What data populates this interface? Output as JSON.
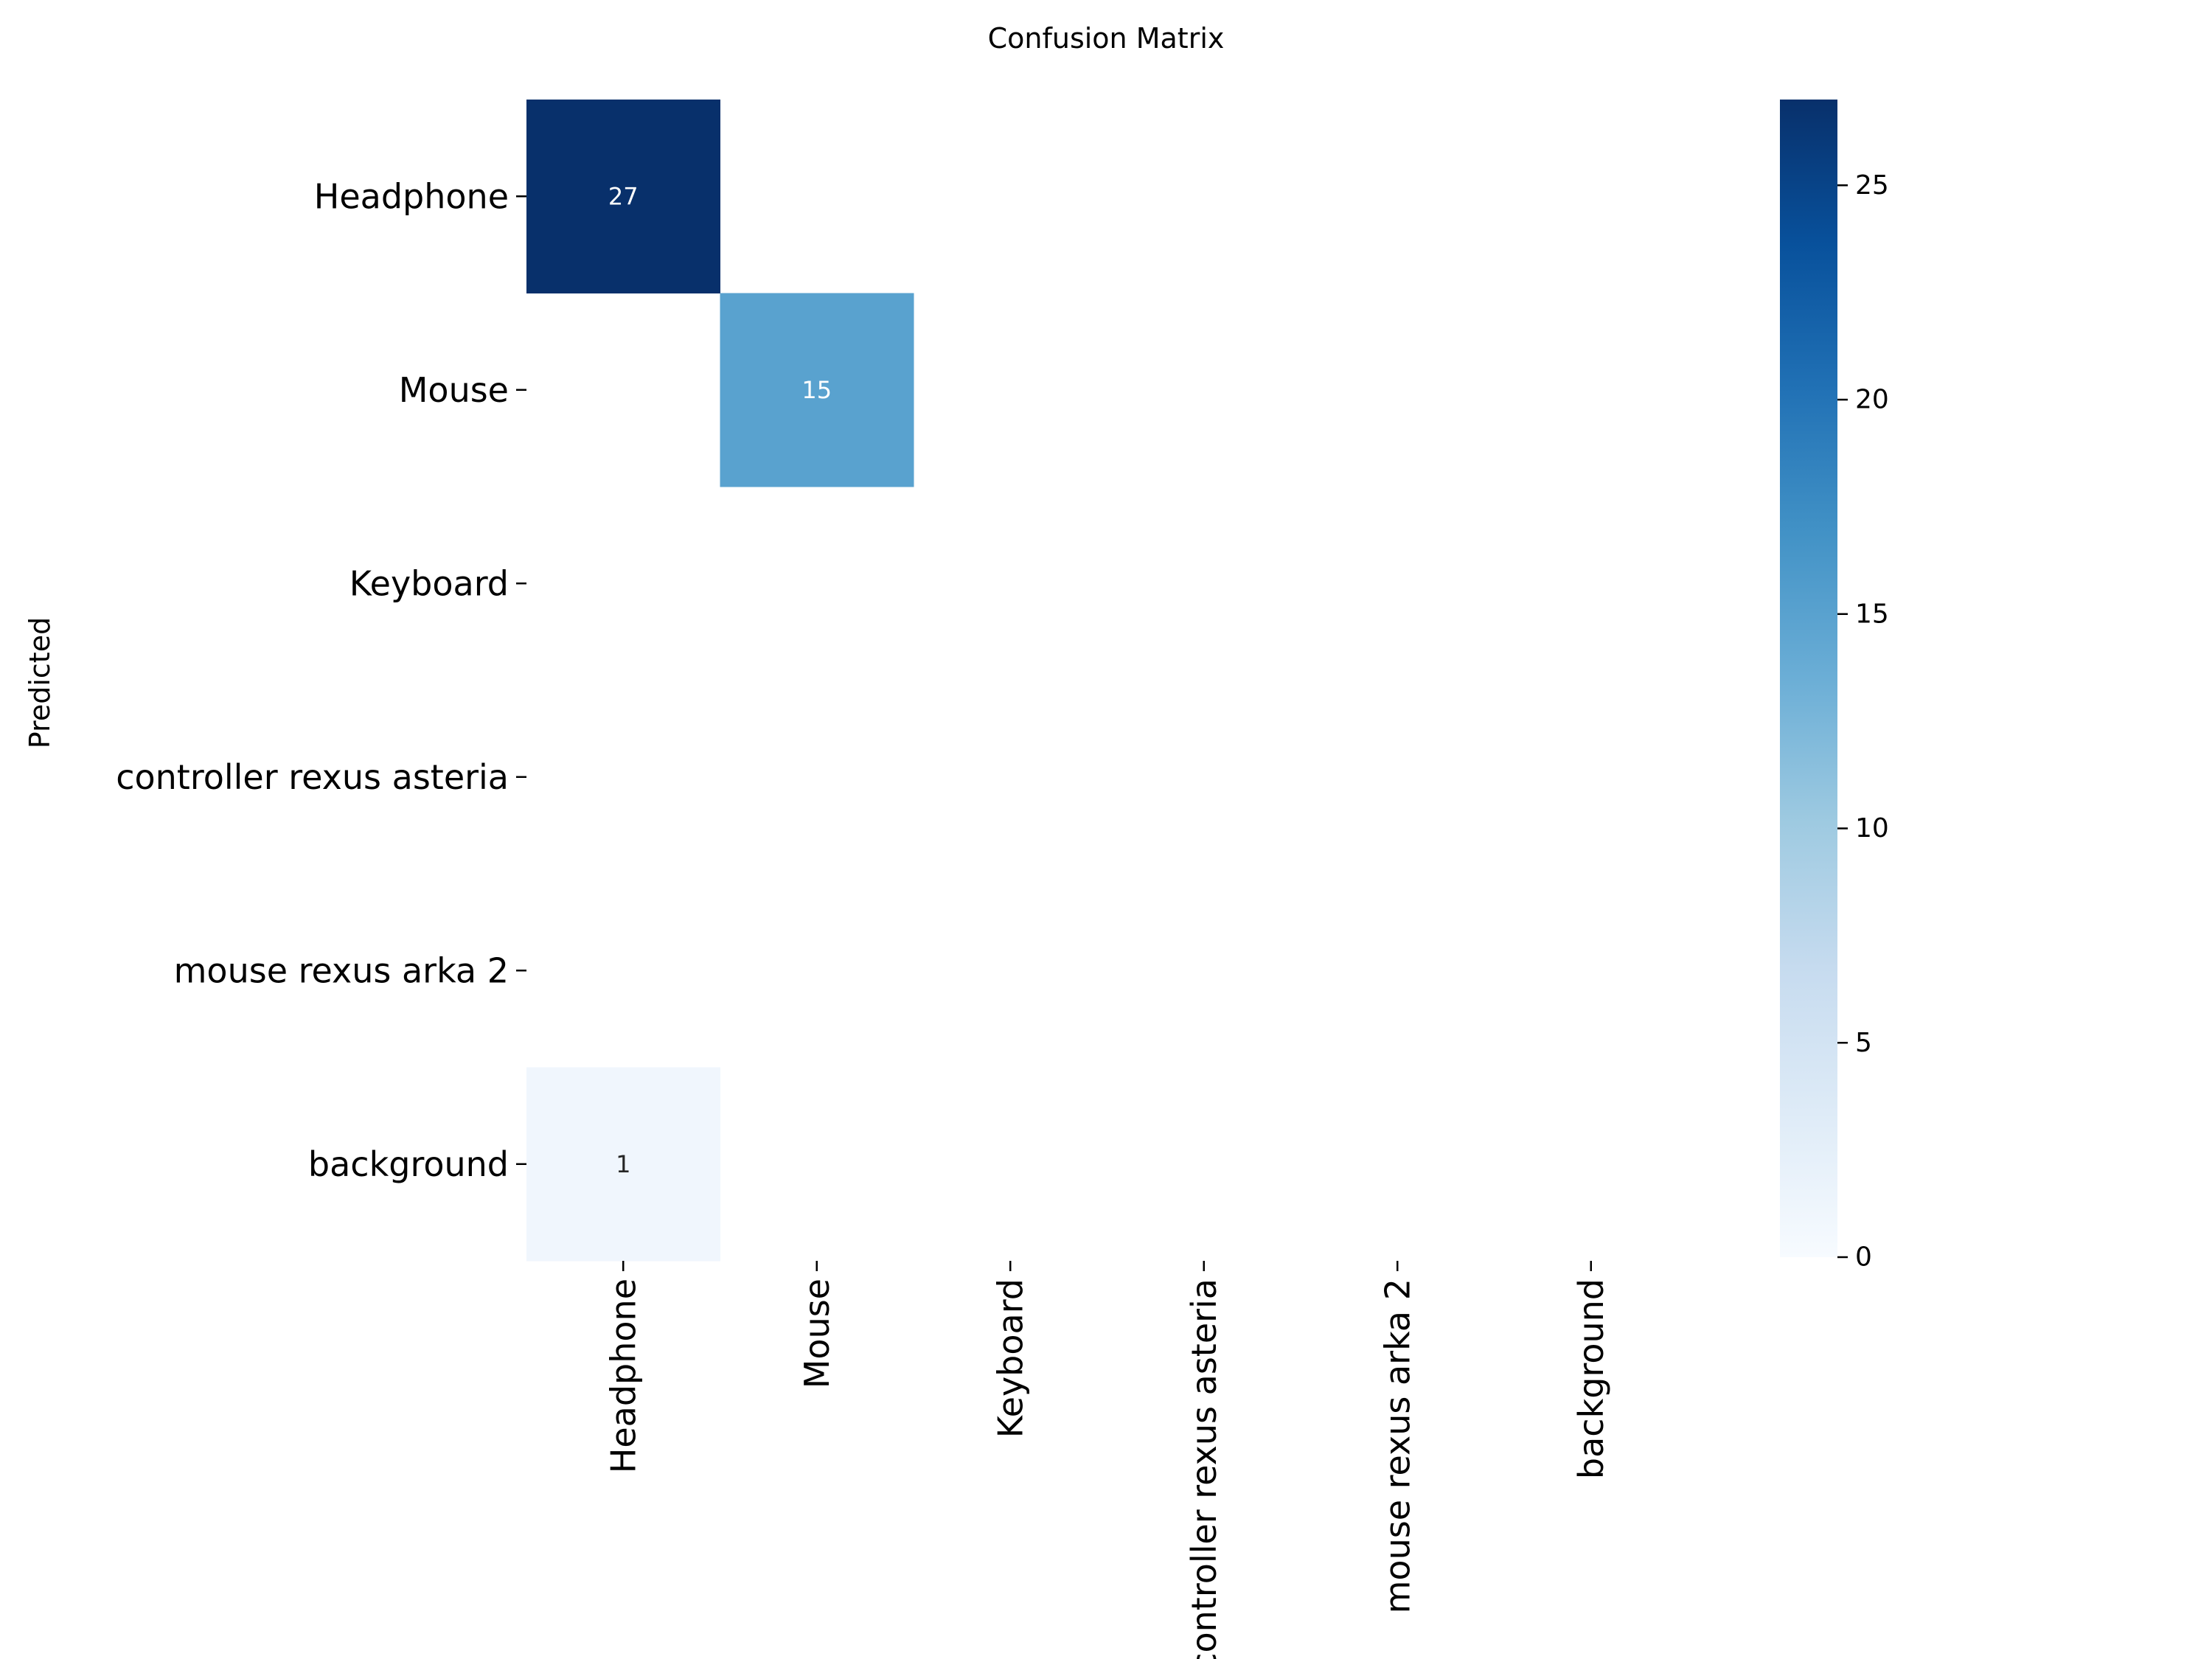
{
  "chart_data": {
    "type": "heatmap",
    "title": "Confusion Matrix",
    "ylabel": "Predicted",
    "xlabel": "",
    "x_categories": [
      "Headphone",
      "Mouse",
      "Keyboard",
      "controller rexus asteria",
      "mouse rexus arka 2",
      "background"
    ],
    "y_categories": [
      "Headphone",
      "Mouse",
      "Keyboard",
      "controller rexus asteria",
      "mouse rexus arka 2",
      "background"
    ],
    "matrix": [
      [
        27,
        0,
        0,
        0,
        0,
        0
      ],
      [
        0,
        15,
        0,
        0,
        0,
        0
      ],
      [
        0,
        0,
        0,
        0,
        0,
        0
      ],
      [
        0,
        0,
        0,
        0,
        0,
        0
      ],
      [
        0,
        0,
        0,
        0,
        0,
        0
      ],
      [
        1,
        0,
        0,
        0,
        0,
        0
      ]
    ],
    "hide_zero_cells": true,
    "colormap": "Blues",
    "colorbar": {
      "range": [
        0,
        27
      ],
      "ticks": [
        0,
        5,
        10,
        15,
        20,
        25
      ],
      "placement": "right"
    }
  }
}
